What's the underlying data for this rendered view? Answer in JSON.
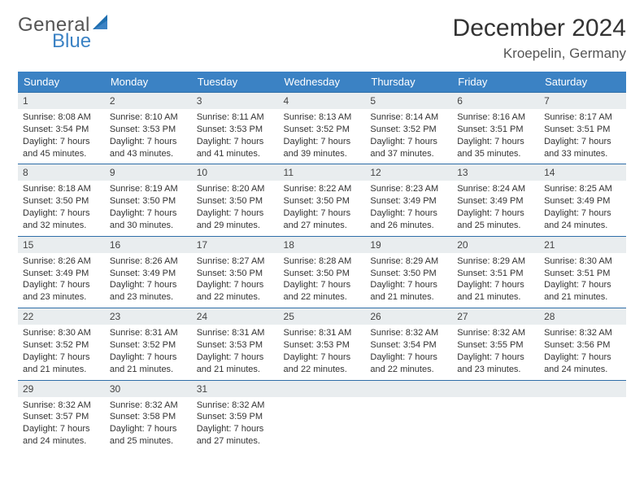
{
  "brand": {
    "word1": "General",
    "word2": "Blue",
    "accent": "#3b82c4",
    "text_gray": "#555555"
  },
  "title": "December 2024",
  "location": "Kroepelin, Germany",
  "header_bg": "#3b82c4",
  "header_fg": "#ffffff",
  "daynum_bg": "#e9edef",
  "rule_color": "#2f6ea8",
  "weekdays": [
    "Sunday",
    "Monday",
    "Tuesday",
    "Wednesday",
    "Thursday",
    "Friday",
    "Saturday"
  ],
  "first_weekday_index": 0,
  "days": [
    {
      "n": 1,
      "sunrise": "8:08 AM",
      "sunset": "3:54 PM",
      "daylight": "7 hours and 45 minutes."
    },
    {
      "n": 2,
      "sunrise": "8:10 AM",
      "sunset": "3:53 PM",
      "daylight": "7 hours and 43 minutes."
    },
    {
      "n": 3,
      "sunrise": "8:11 AM",
      "sunset": "3:53 PM",
      "daylight": "7 hours and 41 minutes."
    },
    {
      "n": 4,
      "sunrise": "8:13 AM",
      "sunset": "3:52 PM",
      "daylight": "7 hours and 39 minutes."
    },
    {
      "n": 5,
      "sunrise": "8:14 AM",
      "sunset": "3:52 PM",
      "daylight": "7 hours and 37 minutes."
    },
    {
      "n": 6,
      "sunrise": "8:16 AM",
      "sunset": "3:51 PM",
      "daylight": "7 hours and 35 minutes."
    },
    {
      "n": 7,
      "sunrise": "8:17 AM",
      "sunset": "3:51 PM",
      "daylight": "7 hours and 33 minutes."
    },
    {
      "n": 8,
      "sunrise": "8:18 AM",
      "sunset": "3:50 PM",
      "daylight": "7 hours and 32 minutes."
    },
    {
      "n": 9,
      "sunrise": "8:19 AM",
      "sunset": "3:50 PM",
      "daylight": "7 hours and 30 minutes."
    },
    {
      "n": 10,
      "sunrise": "8:20 AM",
      "sunset": "3:50 PM",
      "daylight": "7 hours and 29 minutes."
    },
    {
      "n": 11,
      "sunrise": "8:22 AM",
      "sunset": "3:50 PM",
      "daylight": "7 hours and 27 minutes."
    },
    {
      "n": 12,
      "sunrise": "8:23 AM",
      "sunset": "3:49 PM",
      "daylight": "7 hours and 26 minutes."
    },
    {
      "n": 13,
      "sunrise": "8:24 AM",
      "sunset": "3:49 PM",
      "daylight": "7 hours and 25 minutes."
    },
    {
      "n": 14,
      "sunrise": "8:25 AM",
      "sunset": "3:49 PM",
      "daylight": "7 hours and 24 minutes."
    },
    {
      "n": 15,
      "sunrise": "8:26 AM",
      "sunset": "3:49 PM",
      "daylight": "7 hours and 23 minutes."
    },
    {
      "n": 16,
      "sunrise": "8:26 AM",
      "sunset": "3:49 PM",
      "daylight": "7 hours and 23 minutes."
    },
    {
      "n": 17,
      "sunrise": "8:27 AM",
      "sunset": "3:50 PM",
      "daylight": "7 hours and 22 minutes."
    },
    {
      "n": 18,
      "sunrise": "8:28 AM",
      "sunset": "3:50 PM",
      "daylight": "7 hours and 22 minutes."
    },
    {
      "n": 19,
      "sunrise": "8:29 AM",
      "sunset": "3:50 PM",
      "daylight": "7 hours and 21 minutes."
    },
    {
      "n": 20,
      "sunrise": "8:29 AM",
      "sunset": "3:51 PM",
      "daylight": "7 hours and 21 minutes."
    },
    {
      "n": 21,
      "sunrise": "8:30 AM",
      "sunset": "3:51 PM",
      "daylight": "7 hours and 21 minutes."
    },
    {
      "n": 22,
      "sunrise": "8:30 AM",
      "sunset": "3:52 PM",
      "daylight": "7 hours and 21 minutes."
    },
    {
      "n": 23,
      "sunrise": "8:31 AM",
      "sunset": "3:52 PM",
      "daylight": "7 hours and 21 minutes."
    },
    {
      "n": 24,
      "sunrise": "8:31 AM",
      "sunset": "3:53 PM",
      "daylight": "7 hours and 21 minutes."
    },
    {
      "n": 25,
      "sunrise": "8:31 AM",
      "sunset": "3:53 PM",
      "daylight": "7 hours and 22 minutes."
    },
    {
      "n": 26,
      "sunrise": "8:32 AM",
      "sunset": "3:54 PM",
      "daylight": "7 hours and 22 minutes."
    },
    {
      "n": 27,
      "sunrise": "8:32 AM",
      "sunset": "3:55 PM",
      "daylight": "7 hours and 23 minutes."
    },
    {
      "n": 28,
      "sunrise": "8:32 AM",
      "sunset": "3:56 PM",
      "daylight": "7 hours and 24 minutes."
    },
    {
      "n": 29,
      "sunrise": "8:32 AM",
      "sunset": "3:57 PM",
      "daylight": "7 hours and 24 minutes."
    },
    {
      "n": 30,
      "sunrise": "8:32 AM",
      "sunset": "3:58 PM",
      "daylight": "7 hours and 25 minutes."
    },
    {
      "n": 31,
      "sunrise": "8:32 AM",
      "sunset": "3:59 PM",
      "daylight": "7 hours and 27 minutes."
    }
  ],
  "labels": {
    "sunrise": "Sunrise:",
    "sunset": "Sunset:",
    "daylight": "Daylight:"
  }
}
